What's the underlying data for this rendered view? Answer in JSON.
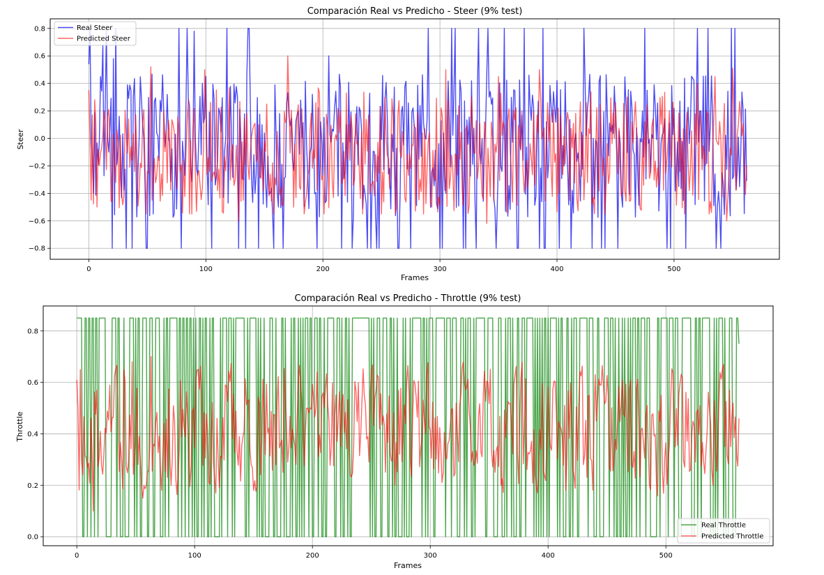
{
  "chart_data": [
    {
      "type": "line",
      "title": "Comparación Real vs Predicho - Steer (9% test)",
      "xlabel": "Frames",
      "ylabel": "Steer",
      "xlim": [
        -33.0,
        590.0
      ],
      "ylim": [
        -0.88,
        0.87
      ],
      "xticks": [
        0,
        100,
        200,
        300,
        400,
        500
      ],
      "xtick_labels": [
        "0",
        "100",
        "200",
        "300",
        "400",
        "500"
      ],
      "yticks": [
        -0.8,
        -0.6,
        -0.4,
        -0.2,
        0.0,
        0.2,
        0.4,
        0.6,
        0.8
      ],
      "ytick_labels": [
        "−0.8",
        "−0.6",
        "−0.4",
        "−0.2",
        "0.0",
        "0.2",
        "0.4",
        "0.6",
        "0.8"
      ],
      "grid": true,
      "legend_position": "top-left",
      "n_points": 563,
      "seed": 7,
      "series": [
        {
          "name": "Real Steer",
          "color": "#0000ee",
          "opacity": 0.7,
          "kind": "steer_real",
          "anchors": [
            [
              0,
              0.54
            ],
            [
              2,
              0.0
            ],
            [
              4,
              -0.4
            ],
            [
              12,
              0.68
            ],
            [
              17,
              -0.1
            ],
            [
              20,
              -0.8
            ],
            [
              21,
              0.58
            ],
            [
              36,
              0.35
            ],
            [
              37,
              -0.8
            ],
            [
              49,
              -0.8
            ],
            [
              55,
              -0.55
            ],
            [
              77,
              0.8
            ],
            [
              79,
              -0.8
            ],
            [
              84,
              0.8
            ],
            [
              90,
              0.78
            ],
            [
              100,
              0.45
            ],
            [
              105,
              -0.8
            ],
            [
              118,
              0.8
            ],
            [
              145,
              -0.8
            ],
            [
              205,
              0.6
            ],
            [
              238,
              -0.8
            ],
            [
              248,
              -0.8
            ],
            [
              275,
              -0.8
            ],
            [
              290,
              0.8
            ],
            [
              300,
              -0.8
            ],
            [
              322,
              -0.8
            ],
            [
              333,
              0.8
            ],
            [
              355,
              0.8
            ],
            [
              390,
              -0.8
            ],
            [
              400,
              0.42
            ],
            [
              412,
              -0.8
            ],
            [
              430,
              -0.8
            ],
            [
              452,
              -0.8
            ],
            [
              475,
              0.8
            ],
            [
              494,
              -0.8
            ],
            [
              510,
              -0.8
            ],
            [
              520,
              0.8
            ],
            [
              540,
              -0.8
            ],
            [
              552,
              0.8
            ],
            [
              562,
              -0.31
            ]
          ]
        },
        {
          "name": "Predicted Steer",
          "color": "#ff0000",
          "opacity": 0.6,
          "kind": "steer_pred",
          "anchors": [
            [
              0,
              0.35
            ],
            [
              2,
              -0.45
            ],
            [
              7,
              -0.5
            ],
            [
              53,
              0.52
            ],
            [
              99,
              0.5
            ],
            [
              128,
              -0.6
            ],
            [
              170,
              0.6
            ],
            [
              175,
              -0.5
            ],
            [
              220,
              0.33
            ],
            [
              253,
              0.3
            ],
            [
              305,
              0.5
            ],
            [
              340,
              -0.62
            ],
            [
              350,
              0.45
            ],
            [
              385,
              0.5
            ],
            [
              460,
              0.3
            ],
            [
              520,
              0.4
            ],
            [
              530,
              -0.55
            ],
            [
              535,
              0.45
            ],
            [
              545,
              -0.6
            ],
            [
              550,
              0.51
            ],
            [
              562,
              -0.2
            ]
          ]
        }
      ]
    },
    {
      "type": "line",
      "title": "Comparación Real vs Predicho - Throttle (9% test)",
      "xlabel": "Frames",
      "ylabel": "Throttle",
      "xlim": [
        -28.5,
        591.0
      ],
      "ylim": [
        -0.035,
        0.897
      ],
      "xticks": [
        0,
        100,
        200,
        300,
        400,
        500
      ],
      "xtick_labels": [
        "0",
        "100",
        "200",
        "300",
        "400",
        "500"
      ],
      "yticks": [
        0.0,
        0.2,
        0.4,
        0.6,
        0.8
      ],
      "ytick_labels": [
        "0.0",
        "0.2",
        "0.4",
        "0.6",
        "0.8"
      ],
      "grid": true,
      "legend_position": "bottom-right",
      "n_points": 563,
      "seed": 21,
      "series": [
        {
          "name": "Real Throttle",
          "color": "#008000",
          "opacity": 0.7,
          "kind": "throttle_real",
          "anchors": [
            [
              0,
              0.85
            ],
            [
              5,
              0.0
            ],
            [
              7,
              0.85
            ],
            [
              55,
              0.0
            ],
            [
              60,
              0.0
            ],
            [
              63,
              0.85
            ],
            [
              75,
              0.0
            ],
            [
              93,
              0.85
            ],
            [
              112,
              0.0
            ],
            [
              116,
              0.85
            ],
            [
              130,
              0.85
            ],
            [
              145,
              0.85
            ],
            [
              165,
              0.85
            ],
            [
              175,
              0.85
            ],
            [
              210,
              0.85
            ],
            [
              225,
              0.85
            ],
            [
              230,
              0.0
            ],
            [
              310,
              0.85
            ],
            [
              330,
              0.85
            ],
            [
              470,
              0.85
            ],
            [
              495,
              0.0
            ],
            [
              555,
              0.85
            ],
            [
              561,
              0.85
            ],
            [
              562,
              0.75
            ]
          ]
        },
        {
          "name": "Predicted Throttle",
          "color": "#ff0000",
          "opacity": 0.6,
          "kind": "throttle_pred",
          "anchors": [
            [
              0,
              0.61
            ],
            [
              1,
              0.5
            ],
            [
              3,
              0.65
            ],
            [
              9,
              0.27
            ],
            [
              14,
              0.1
            ],
            [
              40,
              0.65
            ],
            [
              47,
              0.68
            ],
            [
              50,
              0.37
            ],
            [
              56,
              0.15
            ],
            [
              63,
              0.7
            ],
            [
              80,
              0.2
            ],
            [
              86,
              0.24
            ],
            [
              150,
              0.18
            ],
            [
              160,
              0.32
            ],
            [
              175,
              0.25
            ],
            [
              256,
              0.62
            ],
            [
              270,
              0.2
            ],
            [
              295,
              0.45
            ],
            [
              360,
              0.2
            ],
            [
              415,
              0.18
            ],
            [
              540,
              0.2
            ],
            [
              555,
              0.35
            ],
            [
              562,
              0.46
            ]
          ]
        }
      ]
    }
  ]
}
